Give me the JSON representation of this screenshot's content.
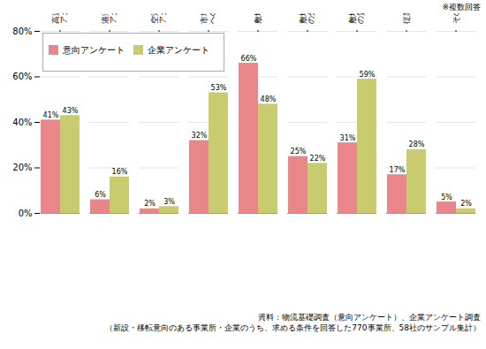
{
  "chart_data": {
    "type": "bar",
    "categories": [
      "高速道路への\nアクセス性",
      "港湾への\nアクセス性",
      "空港への\nアクセス性",
      "市場・消費地・取引先等\nへのアクセス性",
      "敷地の広さ",
      "敷地・用地\nの分譲価格",
      "敷地・用地\nの賃借費",
      "従業者の確保",
      "その他"
    ],
    "series": [
      {
        "name": "意向アンケート",
        "color": "#e8868a",
        "values": [
          41,
          6,
          2,
          32,
          66,
          25,
          31,
          17,
          5
        ],
        "value_labels": [
          "41%",
          "6%",
          "2%",
          "32%",
          "66%",
          "25%",
          "31%",
          "17%",
          "5%"
        ]
      },
      {
        "name": "企業アンケート",
        "color": "#c8cc6e",
        "values": [
          43,
          16,
          3,
          53,
          48,
          22,
          59,
          28,
          2
        ],
        "value_labels": [
          "43%",
          "16%",
          "3%",
          "53%",
          "48%",
          "22%",
          "59%",
          "28%",
          "2%"
        ]
      }
    ],
    "ylim": [
      0,
      80
    ],
    "yticks": [
      {
        "value": 0,
        "label": "0%"
      },
      {
        "value": 20,
        "label": "20%"
      },
      {
        "value": 40,
        "label": "40%"
      },
      {
        "value": 60,
        "label": "60%"
      },
      {
        "value": 80,
        "label": "80%"
      }
    ],
    "grid": true,
    "legend": "upper left",
    "data_labels": true,
    "annotations": [
      "※複数回答",
      "資料：物流基礎調査（意向アンケート）、企業アンケート調査",
      "（新設・移転意向のある事業所・企業のうち、求める条件を回答した770事業所、58社のサンプル集計）"
    ]
  }
}
